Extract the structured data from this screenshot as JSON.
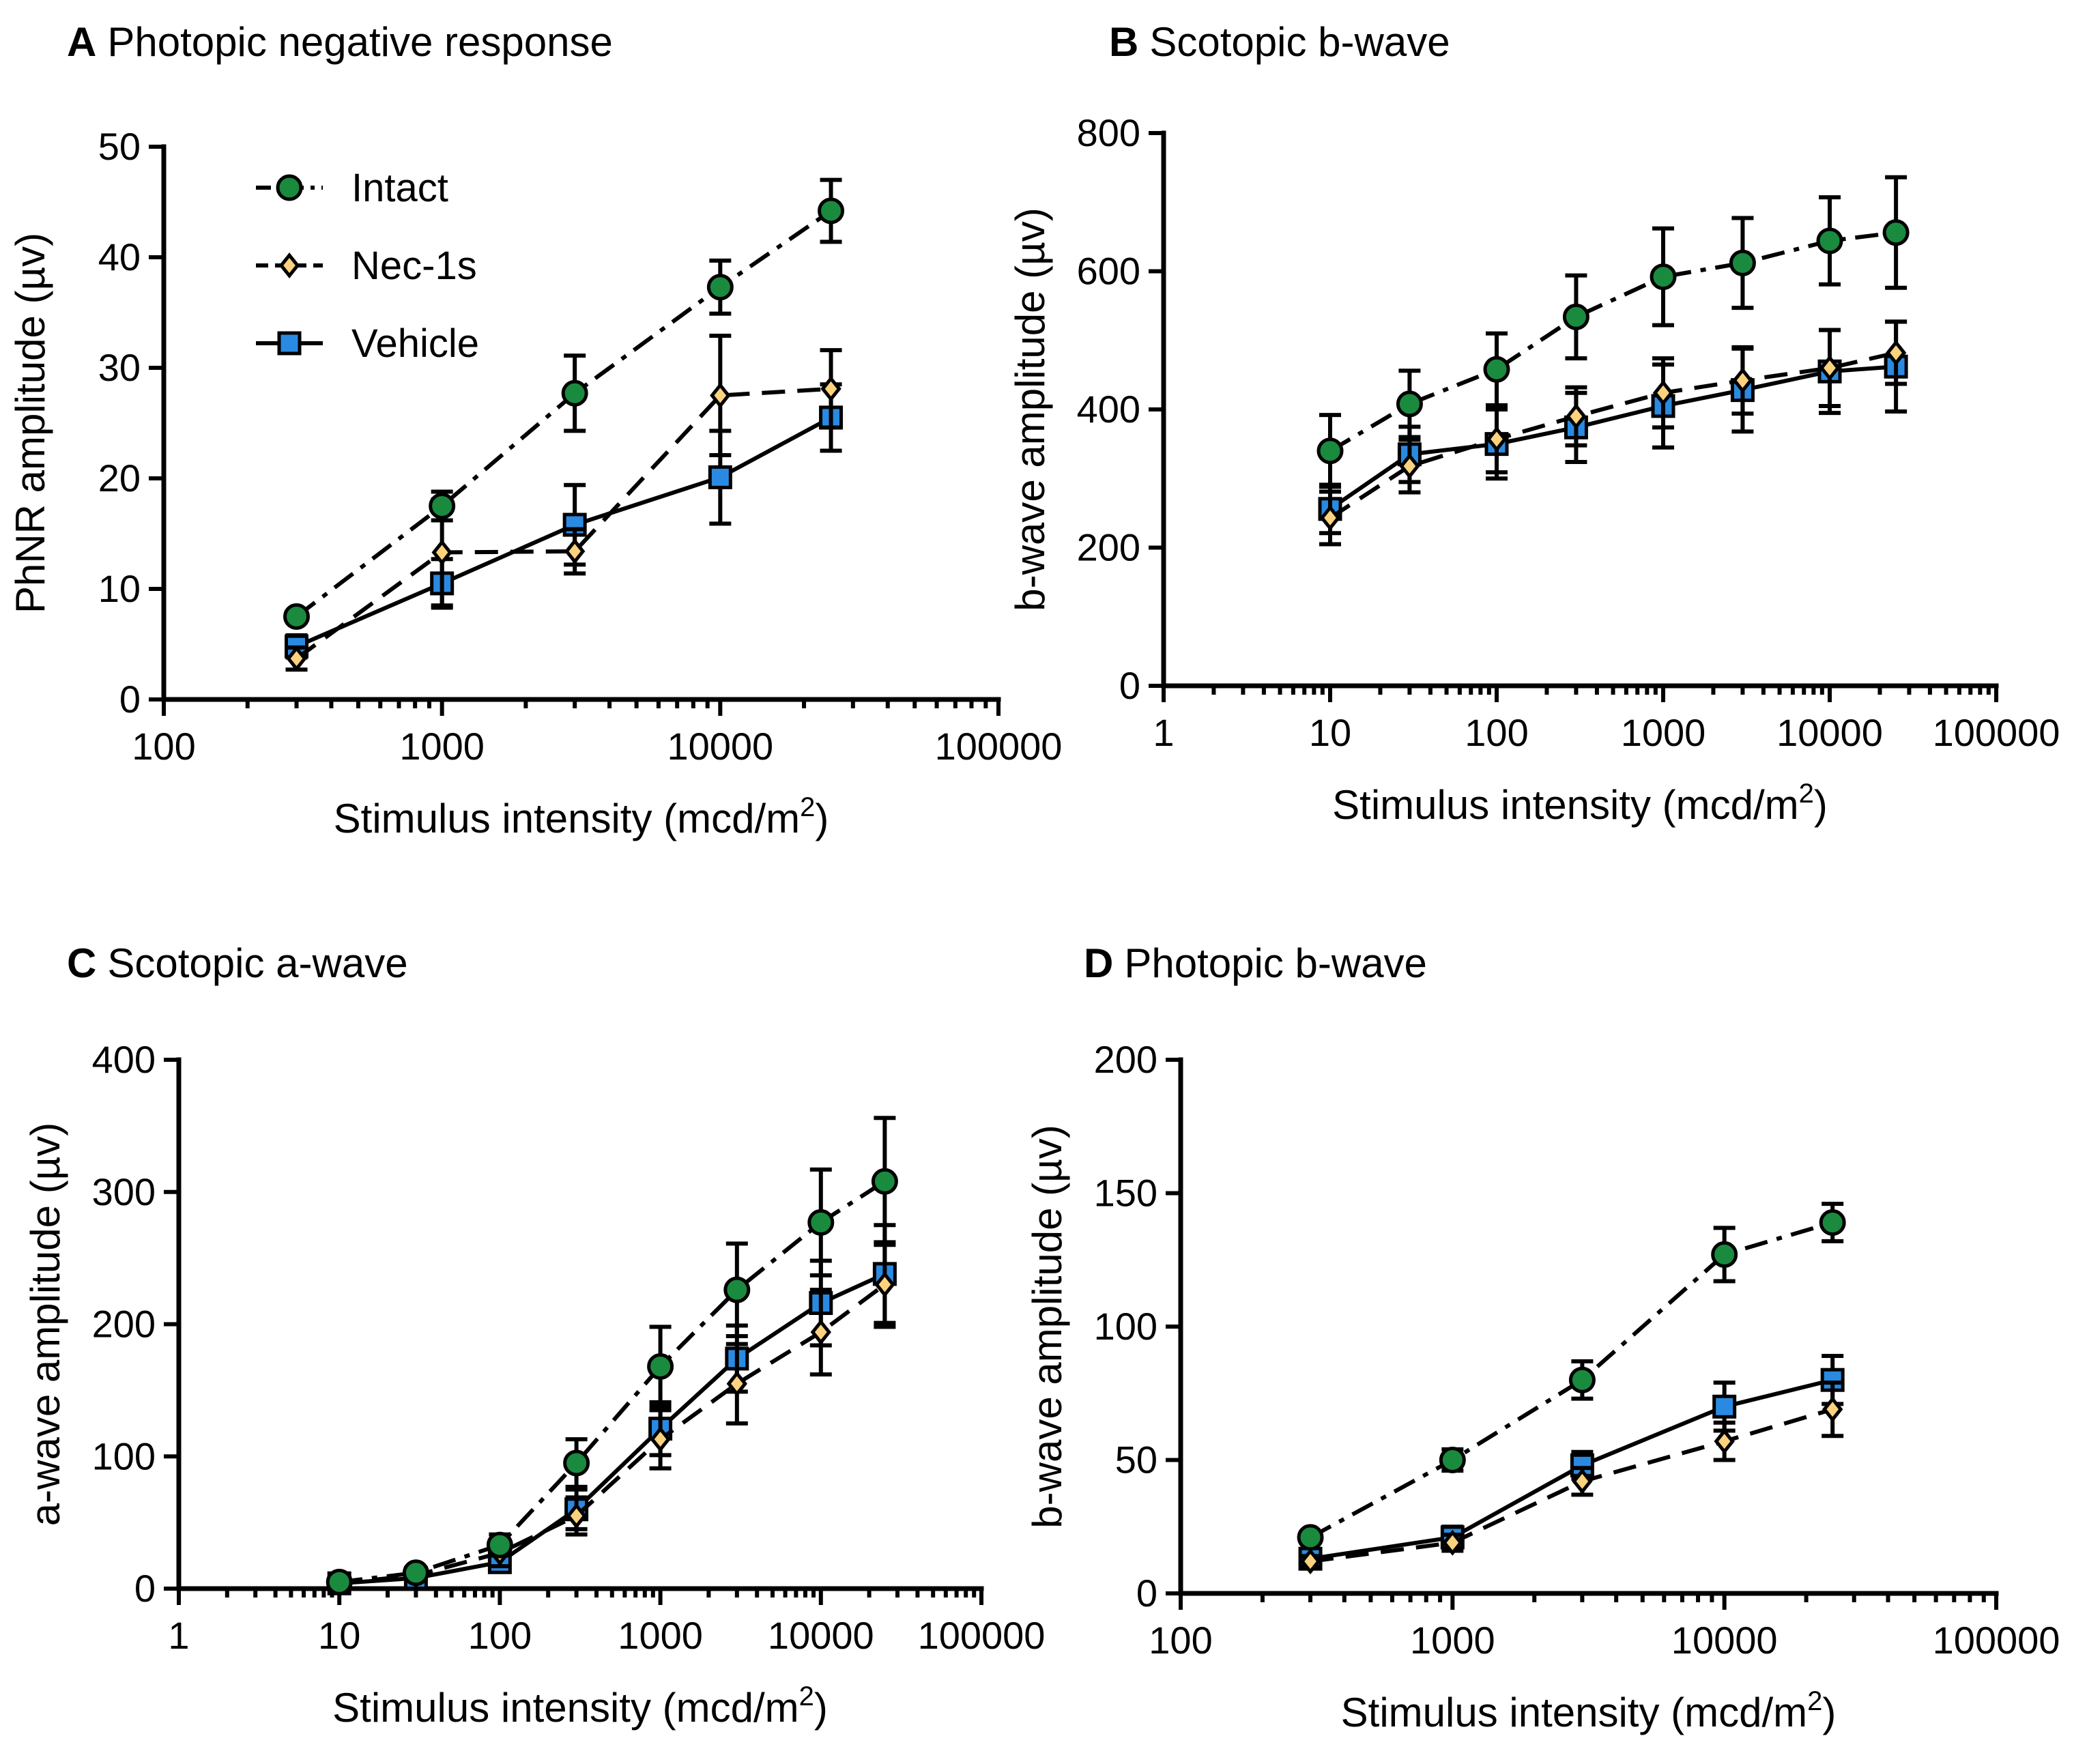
{
  "chart_data": [
    {
      "type": "line",
      "panel": "A",
      "title": "Photopic negative response",
      "xlabel": "Stimulus intensity (mcd/m2)",
      "xlabel_main": "Stimulus intensity (mcd/m",
      "xlabel_sup": "2",
      "xlabel_end": ")",
      "ylabel": "PhNR amplitude (µv)",
      "xscale": "log",
      "xlim": [
        100,
        100000
      ],
      "ylim": [
        0,
        50
      ],
      "xticks": [
        100,
        1000,
        10000,
        100000
      ],
      "xtick_labels": [
        "100",
        "1000",
        "10000",
        "100000"
      ],
      "yticks": [
        0,
        10,
        20,
        30,
        40,
        50
      ],
      "ytick_labels": [
        "0",
        "10",
        "20",
        "30",
        "40",
        "50"
      ],
      "legend": "top-left",
      "x": [
        300,
        1000,
        3000,
        10000,
        25000
      ],
      "series": [
        {
          "name": "Intact",
          "marker": "circle",
          "dash": "dashdot",
          "color": "#1a8a3e",
          "values": [
            7.5,
            17.5,
            27.7,
            37.3,
            44.2
          ],
          "err": [
            0.5,
            1.3,
            3.4,
            2.4,
            2.8
          ]
        },
        {
          "name": "Nec-1s",
          "marker": "diamond",
          "dash": "dashed",
          "color": "#fcd27e",
          "values": [
            3.7,
            13.3,
            13.4,
            27.5,
            28.1
          ],
          "err": [
            1.0,
            4.8,
            2.0,
            5.4,
            3.5
          ]
        },
        {
          "name": "Vehicle",
          "marker": "square",
          "dash": "solid",
          "color": "#2a8ae2",
          "values": [
            4.8,
            10.5,
            15.8,
            20.1,
            25.5
          ],
          "err": [
            1.0,
            2.2,
            3.6,
            4.2,
            3.0
          ]
        }
      ]
    },
    {
      "type": "line",
      "panel": "B",
      "title": "Scotopic b-wave",
      "xlabel": "Stimulus intensity (mcd/m2)",
      "xlabel_main": "Stimulus intensity (mcd/m",
      "xlabel_sup": "2",
      "xlabel_end": ")",
      "ylabel": "b-wave amplitude (µv)",
      "xscale": "log",
      "xlim": [
        1,
        100000
      ],
      "ylim": [
        0,
        800
      ],
      "xticks": [
        1,
        10,
        100,
        1000,
        10000,
        100000
      ],
      "xtick_labels": [
        "1",
        "10",
        "100",
        "1000",
        "10000",
        "100000"
      ],
      "yticks": [
        0,
        200,
        400,
        600,
        800
      ],
      "ytick_labels": [
        "0",
        "200",
        "400",
        "600",
        "800"
      ],
      "x": [
        10,
        30,
        100,
        300,
        1000,
        3000,
        10000,
        25000
      ],
      "series": [
        {
          "name": "Intact",
          "marker": "circle",
          "dash": "dashdot",
          "color": "#1a8a3e",
          "values": [
            340,
            408,
            458,
            534,
            592,
            612,
            644,
            656
          ],
          "err": [
            52,
            48,
            52,
            60,
            70,
            65,
            63,
            80
          ]
        },
        {
          "name": "Nec-1s",
          "marker": "diamond",
          "dash": "dashed",
          "color": "#fcd27e",
          "values": [
            243,
            318,
            357,
            390,
            424,
            442,
            460,
            482
          ],
          "err": [
            38,
            38,
            48,
            42,
            50,
            48,
            55,
            45
          ]
        },
        {
          "name": "Vehicle",
          "marker": "square",
          "dash": "solid",
          "color": "#2a8ae2",
          "values": [
            256,
            335,
            350,
            374,
            405,
            428,
            455,
            462
          ],
          "err": [
            35,
            40,
            50,
            50,
            60,
            60,
            60,
            65
          ]
        }
      ]
    },
    {
      "type": "line",
      "panel": "C",
      "title": "Scotopic a-wave",
      "xlabel": "Stimulus intensity (mcd/m2)",
      "xlabel_main": "Stimulus intensity (mcd/m",
      "xlabel_sup": "2",
      "xlabel_end": ")",
      "ylabel": "a-wave amplitude (µv)",
      "xscale": "log",
      "xlim": [
        1,
        100000
      ],
      "ylim": [
        0,
        400
      ],
      "xticks": [
        1,
        10,
        100,
        1000,
        10000,
        100000
      ],
      "xtick_labels": [
        "1",
        "10",
        "100",
        "1000",
        "10000",
        "100000"
      ],
      "yticks": [
        0,
        100,
        200,
        300,
        400
      ],
      "ytick_labels": [
        "0",
        "100",
        "200",
        "300",
        "400"
      ],
      "x": [
        10,
        30,
        100,
        300,
        1000,
        3000,
        10000,
        25000
      ],
      "series": [
        {
          "name": "Intact",
          "marker": "circle",
          "dash": "dashdot",
          "color": "#1a8a3e",
          "values": [
            5,
            12,
            33,
            95,
            168,
            226,
            277,
            308
          ],
          "err": [
            3,
            4,
            8,
            18,
            30,
            35,
            40,
            48
          ]
        },
        {
          "name": "Nec-1s",
          "marker": "diamond",
          "dash": "dashed",
          "color": "#fcd27e",
          "values": [
            4,
            10,
            27,
            55,
            113,
            155,
            194,
            230
          ],
          "err": [
            2,
            4,
            10,
            14,
            22,
            30,
            32,
            32
          ]
        },
        {
          "name": "Vehicle",
          "marker": "square",
          "dash": "solid",
          "color": "#2a8ae2",
          "values": [
            4,
            8,
            20,
            60,
            121,
            174,
            216,
            238
          ],
          "err": [
            2,
            3,
            7,
            15,
            20,
            25,
            32,
            37
          ]
        }
      ]
    },
    {
      "type": "line",
      "panel": "D",
      "title": "Photopic b-wave",
      "xlabel": "Stimulus intensity (mcd/m2)",
      "xlabel_main": "Stimulus intensity (mcd/m",
      "xlabel_sup": "2",
      "xlabel_end": ")",
      "ylabel": "b-wave amplitude (µv)",
      "xscale": "log",
      "xlim": [
        100,
        100000
      ],
      "ylim": [
        0,
        200
      ],
      "xticks": [
        100,
        1000,
        10000,
        100000
      ],
      "xtick_labels": [
        "100",
        "1000",
        "10000",
        "100000"
      ],
      "yticks": [
        0,
        50,
        100,
        150,
        200
      ],
      "ytick_labels": [
        "0",
        "50",
        "100",
        "150",
        "200"
      ],
      "x": [
        300,
        1000,
        3000,
        10000,
        25000
      ],
      "series": [
        {
          "name": "Intact",
          "marker": "circle",
          "dash": "dashdot",
          "color": "#1a8a3e",
          "values": [
            21,
            50,
            80,
            127,
            139
          ],
          "err": [
            2,
            4,
            7,
            10,
            7
          ]
        },
        {
          "name": "Nec-1s",
          "marker": "diamond",
          "dash": "dashed",
          "color": "#fcd27e",
          "values": [
            12,
            19,
            42,
            57,
            69
          ],
          "err": [
            2,
            3,
            5,
            7,
            10
          ]
        },
        {
          "name": "Vehicle",
          "marker": "square",
          "dash": "solid",
          "color": "#2a8ae2",
          "values": [
            13,
            21,
            48,
            70,
            80
          ],
          "err": [
            2,
            4,
            5,
            9,
            9
          ]
        }
      ]
    }
  ]
}
